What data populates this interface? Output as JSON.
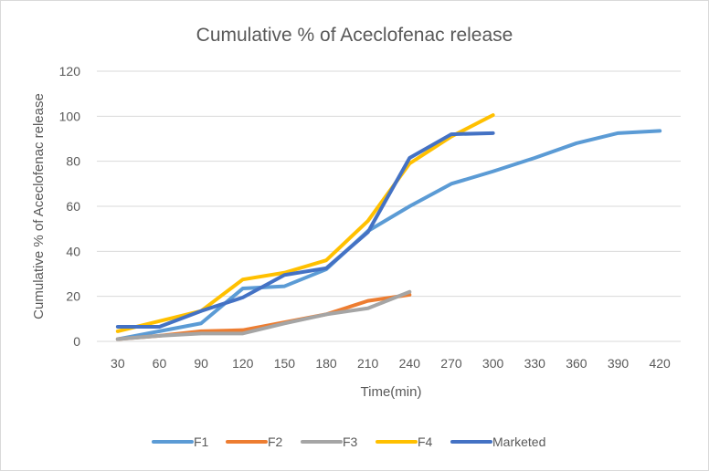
{
  "chart_data": {
    "type": "line",
    "title": "Cumulative % of Aceclofenac release",
    "xlabel": "Time(min)",
    "ylabel": "Cumulative % of Aceclofenac release",
    "x": [
      30,
      60,
      90,
      120,
      150,
      180,
      210,
      240,
      270,
      300,
      330,
      360,
      390,
      420
    ],
    "x_tick_labels": [
      "30",
      "60",
      "90",
      "120",
      "150",
      "180",
      "210",
      "240",
      "270",
      "300",
      "330",
      "360",
      "390",
      "420"
    ],
    "ylim": [
      0,
      120
    ],
    "y_ticks": [
      0,
      20,
      40,
      60,
      80,
      100,
      120
    ],
    "grid": true,
    "legend_position": "bottom",
    "series": [
      {
        "name": "F1",
        "color": "#5B9BD5",
        "values": [
          1,
          4.5,
          8,
          23.5,
          24.5,
          32,
          49,
          60,
          70,
          75.5,
          81.5,
          88,
          92.5,
          93.5
        ]
      },
      {
        "name": "F2",
        "color": "#ED7D31",
        "values": [
          1,
          2.5,
          4.5,
          5,
          8.5,
          12,
          18,
          20.7
        ]
      },
      {
        "name": "F3",
        "color": "#A5A5A5",
        "values": [
          1,
          2.5,
          3.5,
          3.5,
          8,
          12,
          14.7,
          22
        ]
      },
      {
        "name": "F4",
        "color": "#FFC000",
        "values": [
          4.5,
          9,
          13.5,
          27.5,
          30.5,
          36,
          53.5,
          79,
          91,
          100.5
        ]
      },
      {
        "name": "Marketed",
        "color": "#4472C4",
        "values": [
          6.5,
          6.5,
          13.5,
          19.5,
          29.5,
          32.5,
          48.5,
          81.5,
          92,
          92.5
        ]
      }
    ]
  }
}
